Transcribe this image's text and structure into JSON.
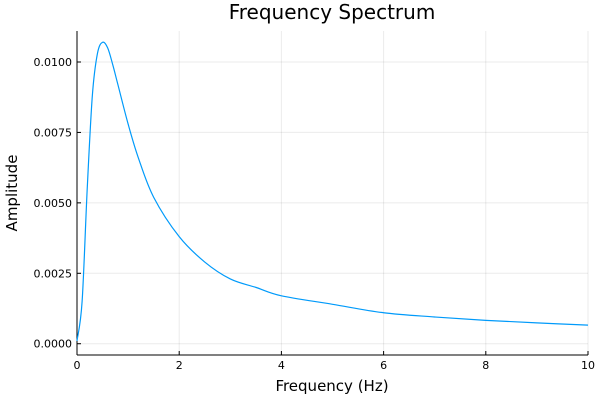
{
  "chart_data": {
    "type": "line",
    "title": "Frequency Spectrum",
    "xlabel": "Frequency (Hz)",
    "ylabel": "Amplitude",
    "xlim": [
      0,
      10
    ],
    "ylim": [
      -0.0004,
      0.0111
    ],
    "xticks": [
      0,
      2,
      4,
      6,
      8,
      10
    ],
    "xtick_labels": [
      "0",
      "2",
      "4",
      "6",
      "8",
      "10"
    ],
    "yticks": [
      0,
      0.0025,
      0.005,
      0.0075,
      0.01
    ],
    "ytick_labels": [
      "0.0000",
      "0.0025",
      "0.0050",
      "0.0075",
      "0.0100"
    ],
    "grid": true,
    "legend": "none",
    "series": [
      {
        "color": "#009AFA",
        "x": [
          0,
          0.1,
          0.2,
          0.3,
          0.4,
          0.5,
          0.6,
          0.7,
          0.8,
          1.0,
          1.2,
          1.5,
          2.0,
          2.5,
          3.0,
          3.5,
          4.0,
          5.0,
          6.0,
          7.0,
          8.0,
          9.0,
          10.0
        ],
        "y": [
          0.0001,
          0.0015,
          0.0055,
          0.0088,
          0.0103,
          0.0107,
          0.0105,
          0.0099,
          0.0092,
          0.0078,
          0.0066,
          0.0052,
          0.0038,
          0.0029,
          0.0023,
          0.002,
          0.0017,
          0.0014,
          0.0011,
          0.00095,
          0.00083,
          0.00074,
          0.00066
        ]
      }
    ]
  }
}
